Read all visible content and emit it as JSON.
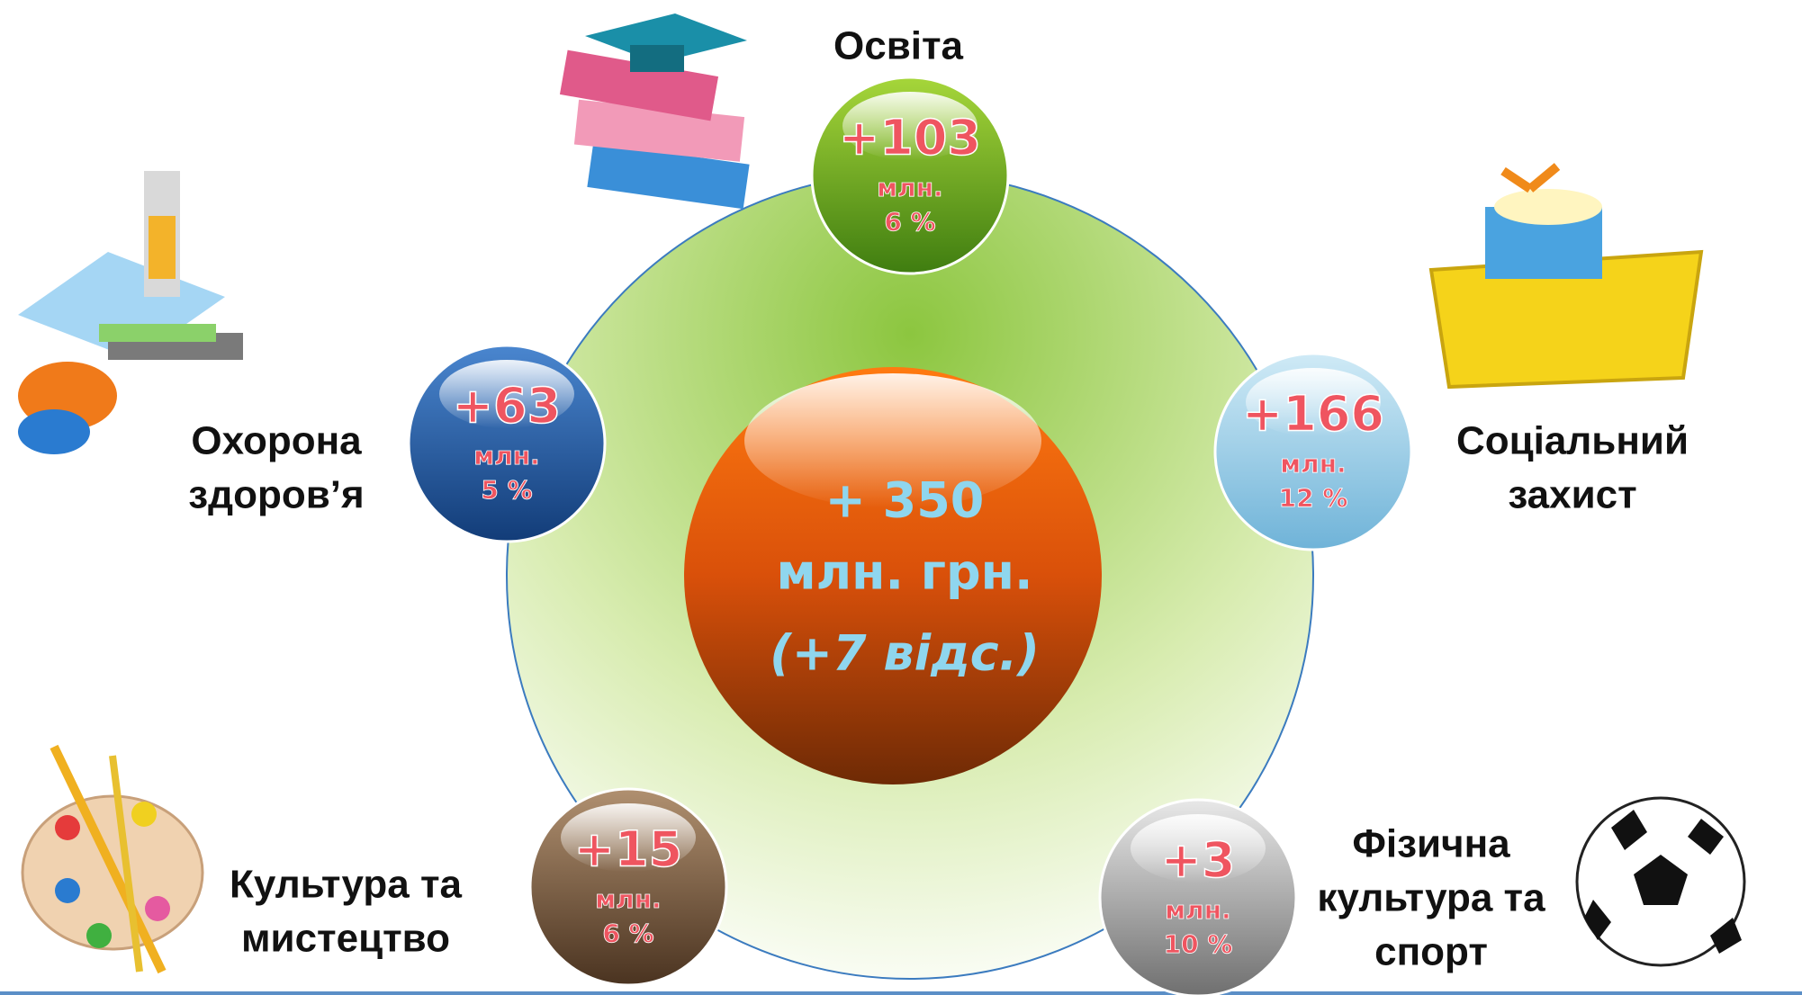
{
  "center": {
    "value": "+ 350",
    "unit": "млн. грн.",
    "note": "(+7 відс.)"
  },
  "nodes": [
    {
      "label": [
        "Освіта"
      ],
      "value": "+103",
      "unit": "млн.",
      "percent": "6 %"
    },
    {
      "label": [
        "Соціальний",
        "захист"
      ],
      "value": "+166",
      "unit": "млн.",
      "percent": "12 %"
    },
    {
      "label": [
        "Фізична",
        "культура та",
        "спорт"
      ],
      "value": "+3",
      "unit": "млн.",
      "percent": "10 %"
    },
    {
      "label": [
        "Культура та",
        "мистецтво"
      ],
      "value": "+15",
      "unit": "млн.",
      "percent": "6 %"
    },
    {
      "label": [
        "Охорона",
        "здоров’я"
      ],
      "value": "+63",
      "unit": "млн.",
      "percent": "5 %"
    }
  ]
}
